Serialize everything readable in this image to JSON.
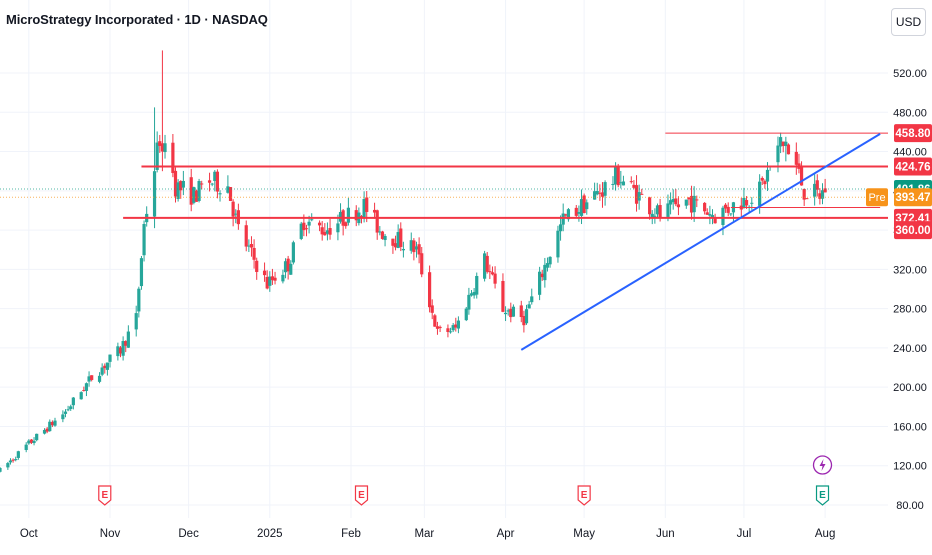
{
  "header": {
    "title": "MicroStrategy Incorporated · 1D · NASDAQ",
    "currency": "USD"
  },
  "colors": {
    "up": "#26a69a",
    "down": "#f23645",
    "trend": "#2962ff",
    "pre": "#f7931a",
    "grid": "#f0f3fa"
  },
  "chart_data": {
    "type": "candlestick",
    "title": "MicroStrategy Incorporated · 1D · NASDAQ",
    "ylim": [
      70,
      555
    ],
    "y_ticks": [
      80,
      120,
      160,
      200,
      240,
      280,
      320,
      360,
      400,
      440,
      480,
      520
    ],
    "y_tick_labels": [
      "80.00",
      "120.00",
      "160.00",
      "200.00",
      "240.00",
      "280.00",
      "320.00",
      "360.00",
      "400.00",
      "440.00",
      "480.00",
      "520.00"
    ],
    "x_labels": [
      {
        "date": "2024-10-01",
        "label": "Oct"
      },
      {
        "date": "2024-11-01",
        "label": "Nov"
      },
      {
        "date": "2024-12-01",
        "label": "Dec"
      },
      {
        "date": "2025-01-01",
        "label": "2025"
      },
      {
        "date": "2025-02-01",
        "label": "Feb"
      },
      {
        "date": "2025-03-01",
        "label": "Mar"
      },
      {
        "date": "2025-04-01",
        "label": "Apr"
      },
      {
        "date": "2025-05-01",
        "label": "May"
      },
      {
        "date": "2025-06-01",
        "label": "Jun"
      },
      {
        "date": "2025-07-01",
        "label": "Jul"
      },
      {
        "date": "2025-08-01",
        "label": "Aug"
      }
    ],
    "x_range": [
      "2024-09-20",
      "2025-08-25"
    ],
    "price_path": [
      [
        "2024-09-20",
        115
      ],
      [
        "2024-09-30",
        140
      ],
      [
        "2024-10-15",
        175
      ],
      [
        "2024-10-25",
        210
      ],
      [
        "2024-11-05",
        238
      ],
      [
        "2024-11-11",
        270
      ],
      [
        "2024-11-14",
        365
      ],
      [
        "2024-11-21",
        470
      ],
      [
        "2024-11-26",
        405
      ],
      [
        "2024-12-03",
        395
      ],
      [
        "2024-12-09",
        410
      ],
      [
        "2024-12-16",
        405
      ],
      [
        "2024-12-20",
        360
      ],
      [
        "2024-12-31",
        305
      ],
      [
        "2025-01-08",
        325
      ],
      [
        "2025-01-14",
        370
      ],
      [
        "2025-01-22",
        360
      ],
      [
        "2025-02-06",
        385
      ],
      [
        "2025-02-12",
        360
      ],
      [
        "2025-02-26",
        340
      ],
      [
        "2025-03-06",
        255
      ],
      [
        "2025-03-13",
        260
      ],
      [
        "2025-03-24",
        330
      ],
      [
        "2025-03-31",
        280
      ],
      [
        "2025-04-08",
        270
      ],
      [
        "2025-04-14",
        310
      ],
      [
        "2025-04-23",
        370
      ],
      [
        "2025-05-05",
        395
      ],
      [
        "2025-05-14",
        415
      ],
      [
        "2025-05-22",
        395
      ],
      [
        "2025-05-30",
        375
      ],
      [
        "2025-06-10",
        390
      ],
      [
        "2025-06-20",
        375
      ],
      [
        "2025-06-27",
        385
      ],
      [
        "2025-07-07",
        400
      ],
      [
        "2025-07-15",
        448
      ],
      [
        "2025-07-21",
        425
      ],
      [
        "2025-07-24",
        400
      ],
      [
        "2025-07-30",
        395
      ],
      [
        "2025-08-01",
        402
      ]
    ],
    "spikes": [
      {
        "date": "2024-11-21",
        "high": 543,
        "low": 420
      },
      {
        "date": "2024-11-18",
        "high": 485,
        "low": 400
      },
      {
        "date": "2025-07-17",
        "high": 455,
        "low": 430
      }
    ],
    "horizontal_levels": [
      {
        "price": 424.76,
        "label": "424.76",
        "color": "#f23645",
        "from": "2024-11-13",
        "thick": true
      },
      {
        "price": 372.41,
        "label": "372.41",
        "color": "#f23645",
        "from": "2024-11-06",
        "thick": true
      },
      {
        "price": 458.8,
        "label": "458.80",
        "color": "#f23645",
        "from": "2025-06-01",
        "thick": false
      },
      {
        "price": 383.0,
        "label": "",
        "color": "#f23645",
        "from": "2025-06-26",
        "to": "2025-08-22",
        "thick": false
      }
    ],
    "trendline": {
      "from": [
        "2025-04-07",
        238
      ],
      "to": [
        "2025-08-22",
        458
      ]
    },
    "current_price": {
      "price": 401.86,
      "label": "401.86",
      "color": "#089981"
    },
    "pre_market": {
      "price": 393.47,
      "label": "393.47",
      "tag": "Pre",
      "color": "#f7931a"
    },
    "level_360": {
      "price": 360.0,
      "label": "360.00",
      "color": "#f23645"
    },
    "earnings_markers": [
      {
        "date": "2024-10-30",
        "label": "E",
        "past": true
      },
      {
        "date": "2025-02-05",
        "label": "E",
        "past": true
      },
      {
        "date": "2025-05-01",
        "label": "E",
        "past": true
      },
      {
        "date": "2025-07-31",
        "label": "E",
        "past": false
      }
    ]
  }
}
